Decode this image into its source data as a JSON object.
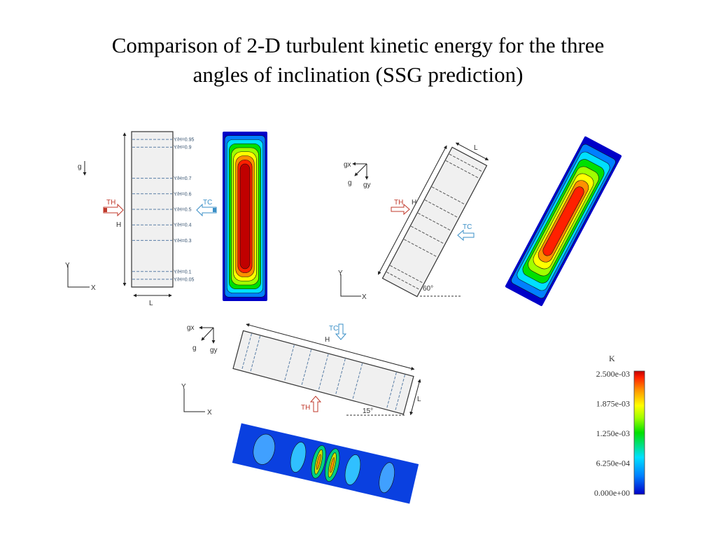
{
  "slide": {
    "title_line1": "Comparison of 2-D turbulent kinetic energy for the three",
    "title_line2": "angles of inclination (SSG prediction)"
  },
  "vertical_case": {
    "levels": [
      "Y/H=0.95",
      "Y/H=0.9",
      "Y/H=0.7",
      "Y/H=0.6",
      "Y/H=0.5",
      "Y/H=0.4",
      "Y/H=0.3",
      "Y/H=0.1",
      "Y/H=0.05"
    ],
    "level_values": [
      0.95,
      0.9,
      0.7,
      0.6,
      0.5,
      0.4,
      0.3,
      0.1,
      0.05
    ],
    "gravity": "g",
    "hot_wall": "TH",
    "cold_wall": "TC",
    "height": "H",
    "width": "L",
    "axis_x": "X",
    "axis_y": "Y"
  },
  "inclined_60": {
    "gx": "gx",
    "g": "g",
    "gy": "gy",
    "hot_wall": "TH",
    "cold_wall": "TC",
    "height": "H",
    "width": "L",
    "angle": "60°",
    "axis_x": "X",
    "axis_y": "Y"
  },
  "inclined_15": {
    "gx": "gx",
    "g": "g",
    "gy": "gy",
    "hot_wall": "TH",
    "cold_wall": "TC",
    "height": "H",
    "width": "L",
    "angle": "15°",
    "axis_x": "X",
    "axis_y": "Y"
  },
  "colorbar": {
    "variable": "K",
    "ticks": [
      "2.500e-03",
      "1.875e-03",
      "1.250e-03",
      "6.250e-04",
      "0.000e+00"
    ],
    "range": [
      0,
      0.0025
    ],
    "colormap": [
      "#0000c8",
      "#0080ff",
      "#00e0ff",
      "#00e000",
      "#a0ff00",
      "#ffff00",
      "#ff9000",
      "#ff2000",
      "#c00000"
    ]
  },
  "colors": {
    "hot": "#c0392b",
    "cold": "#3a8fc7"
  }
}
